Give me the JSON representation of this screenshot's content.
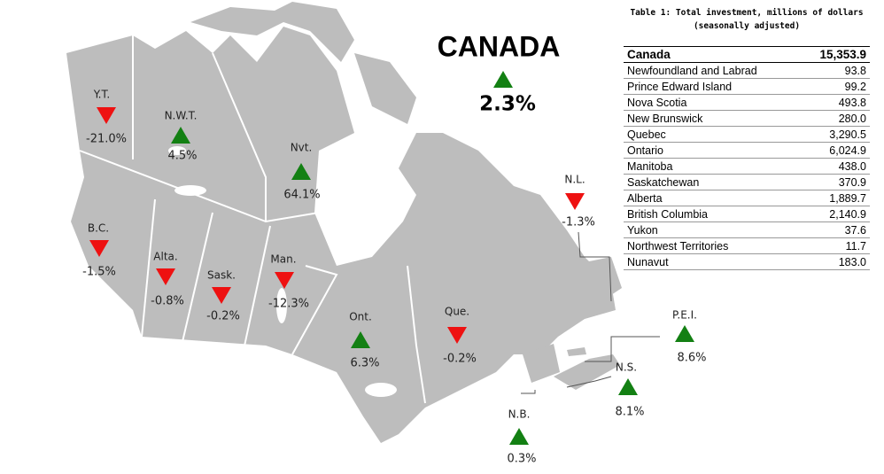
{
  "header": {
    "title": "CANADA",
    "change": "2.3%"
  },
  "regions": [
    {
      "label": "Y.T.",
      "change": "-21.0%"
    },
    {
      "label": "N.W.T.",
      "change": "4.5%"
    },
    {
      "label": "Nvt.",
      "change": "64.1%"
    },
    {
      "label": "B.C.",
      "change": "-1.5%"
    },
    {
      "label": "Alta.",
      "change": "-0.8%"
    },
    {
      "label": "Sask.",
      "change": "-0.2%"
    },
    {
      "label": "Man.",
      "change": "-12.3%"
    },
    {
      "label": "Ont.",
      "change": "6.3%"
    },
    {
      "label": "Que.",
      "change": "-0.2%"
    },
    {
      "label": "N.L.",
      "change": "-1.3%"
    },
    {
      "label": "P.E.I.",
      "change": "8.6%"
    },
    {
      "label": "N.S.",
      "change": "8.1%"
    },
    {
      "label": "N.B.",
      "change": "0.3%"
    }
  ],
  "table": {
    "title": [
      "Table 1: Total investment, millions of dollars",
      "(seasonally adjusted)"
    ],
    "rows": [
      [
        "Canada",
        "15,353.9"
      ],
      [
        "Newfoundland and Labrad",
        "93.8"
      ],
      [
        "Prince Edward Island",
        "99.2"
      ],
      [
        "Nova Scotia",
        "493.8"
      ],
      [
        "New Brunswick",
        "280.0"
      ],
      [
        "Quebec",
        "3,290.5"
      ],
      [
        "Ontario",
        "6,024.9"
      ],
      [
        "Manitoba",
        "438.0"
      ],
      [
        "Saskatchewan",
        "370.9"
      ],
      [
        "Alberta",
        "1,889.7"
      ],
      [
        "British Columbia",
        "2,140.9"
      ],
      [
        "Yukon",
        "37.6"
      ],
      [
        "Northwest Territories",
        "11.7"
      ],
      [
        "Nunavut",
        "183.0"
      ]
    ]
  }
}
